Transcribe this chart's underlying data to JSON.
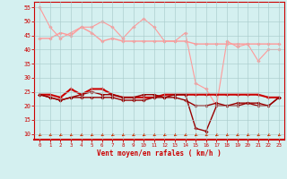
{
  "xlabel": "Vent moyen/en rafales ( km/h )",
  "background_color": "#d4f0f0",
  "grid_color": "#aacccc",
  "xlim": [
    -0.5,
    23.5
  ],
  "ylim": [
    8,
    57
  ],
  "yticks": [
    10,
    15,
    20,
    25,
    30,
    35,
    40,
    45,
    50,
    55
  ],
  "xticks": [
    0,
    1,
    2,
    3,
    4,
    5,
    6,
    7,
    8,
    9,
    10,
    11,
    12,
    13,
    14,
    15,
    16,
    17,
    18,
    19,
    20,
    21,
    22,
    23
  ],
  "x": [
    0,
    1,
    2,
    3,
    4,
    5,
    6,
    7,
    8,
    9,
    10,
    11,
    12,
    13,
    14,
    15,
    16,
    17,
    18,
    19,
    20,
    21,
    22,
    23
  ],
  "lines_light": [
    [
      55,
      48,
      44,
      46,
      48,
      48,
      50,
      48,
      44,
      48,
      51,
      48,
      43,
      43,
      46,
      28,
      26,
      20,
      43,
      41,
      42,
      36,
      40,
      40
    ],
    [
      44,
      44,
      46,
      45,
      48,
      46,
      43,
      44,
      43,
      43,
      43,
      43,
      43,
      43,
      43,
      42,
      42,
      42,
      42,
      42,
      42,
      42,
      42,
      42
    ]
  ],
  "lines_dark": [
    [
      24,
      24,
      23,
      26,
      24,
      26,
      26,
      24,
      23,
      23,
      23,
      23,
      24,
      24,
      24,
      24,
      24,
      24,
      24,
      24,
      24,
      24,
      23,
      23
    ],
    [
      24,
      23,
      22,
      23,
      23,
      23,
      23,
      23,
      22,
      22,
      22,
      23,
      23,
      23,
      22,
      20,
      20,
      21,
      20,
      21,
      21,
      20,
      20,
      23
    ],
    [
      24,
      23,
      22,
      23,
      24,
      25,
      24,
      24,
      23,
      23,
      24,
      24,
      23,
      24,
      24,
      12,
      11,
      20,
      20,
      20,
      21,
      21,
      20,
      23
    ]
  ],
  "light_color": "#ff9999",
  "dark_color": "#cc0000",
  "dark_color2": "#990000",
  "arrow_color": "#cc3300",
  "axis_color": "#cc0000",
  "label_color": "#cc0000"
}
